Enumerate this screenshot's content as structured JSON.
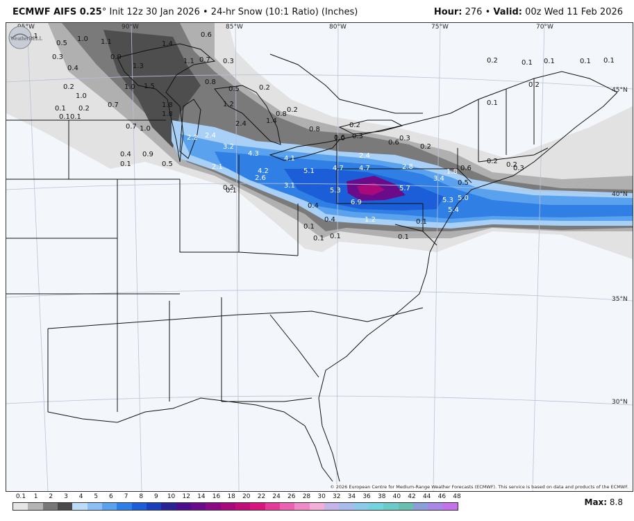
{
  "header": {
    "model": "ECMWF AIFS 0.25",
    "degree": "°",
    "init": "Init 12z 30 Jan 2026",
    "bullet": "•",
    "product": "24-hr Snow (10:1 Ratio) (Inches)",
    "hour_label": "Hour:",
    "hour_value": "276",
    "valid_label": "Valid:",
    "valid_value": "00z Wed 11 Feb 2026"
  },
  "grid_labels": {
    "lon_95": "95°W",
    "lon_90": "90°W",
    "lon_85": "85°W",
    "lon_80": "80°W",
    "lon_75": "75°W",
    "lon_70": "70°W",
    "lat_45": "45°N",
    "lat_40": "40°N",
    "lat_35": "35°N",
    "lat_30": "30°N"
  },
  "snow_labels": [
    "0.1",
    "0.5",
    "1.0",
    "1.1",
    "1.4",
    "0.6",
    "0.9",
    "1.3",
    "0.3",
    "1.1",
    "0.7",
    "0.3",
    "0.4",
    "0.2",
    "1.0",
    "1.5",
    "0.8",
    "0.5",
    "0.2",
    "0.7",
    "1.8",
    "1.0",
    "1.2",
    "0.1",
    "0.2",
    "0.1",
    "0.1",
    "1.8",
    "0.8",
    "0.2",
    "0.7",
    "1.0",
    "2.4",
    "1.4",
    "0.8",
    "0.2",
    "2.2",
    "2.4",
    "0.6",
    "0.3",
    "3.2",
    "1.0",
    "0.6",
    "0.3",
    "0.2",
    "0.4",
    "0.9",
    "4.3",
    "4.1",
    "2.4",
    "0.1",
    "0.5",
    "2.1",
    "4.2",
    "5.1",
    "4.7",
    "4.7",
    "2.8",
    "1.8",
    "0.2",
    "0.6",
    "0.3",
    "2.6",
    "3.1",
    "0.5",
    "3.4",
    "0.2",
    "0.1",
    "5.3",
    "5.7",
    "5.0",
    "6.9",
    "5.3",
    "0.4",
    "5.4",
    "0.4",
    "1.2",
    "0.1",
    "0.1",
    "0.1",
    "0.1",
    "0.1",
    "0.2",
    "0.1",
    "0.1",
    "0.1",
    "0.2",
    "0.1",
    "0.1",
    "0.2"
  ],
  "legend": {
    "ticks": [
      "0.1",
      "1",
      "2",
      "3",
      "4",
      "5",
      "6",
      "7",
      "8",
      "9",
      "10",
      "12",
      "14",
      "16",
      "18",
      "20",
      "22",
      "24",
      "26",
      "28",
      "30",
      "32",
      "34",
      "36",
      "38",
      "40",
      "42",
      "44",
      "46",
      "48"
    ],
    "colors": [
      "#e6e6e6",
      "#b4b4b4",
      "#787878",
      "#4a4a4a",
      "#bcdcf8",
      "#8cc0f4",
      "#5aa2ee",
      "#2f7fe4",
      "#1c5ed8",
      "#1a3fb8",
      "#2a2394",
      "#4b0f8c",
      "#6a0b8a",
      "#8a0a84",
      "#a80a7c",
      "#c00e78",
      "#d6167c",
      "#e43a9a",
      "#ea62b4",
      "#ee8ac8",
      "#f2aed6",
      "#c4b4e8",
      "#a8bcec",
      "#8ccae8",
      "#72d4dc",
      "#6ccac8",
      "#6abfb0",
      "#8c9ed8",
      "#a888e4",
      "#c472ec"
    ]
  },
  "max": {
    "label": "Max:",
    "value": "8.8"
  },
  "copyright": "© 2026 European Centre for Medium-Range Weather Forecasts (ECMWF). This service is based on data and products of the ECMWF.",
  "logo_text": "WeatherBELL"
}
